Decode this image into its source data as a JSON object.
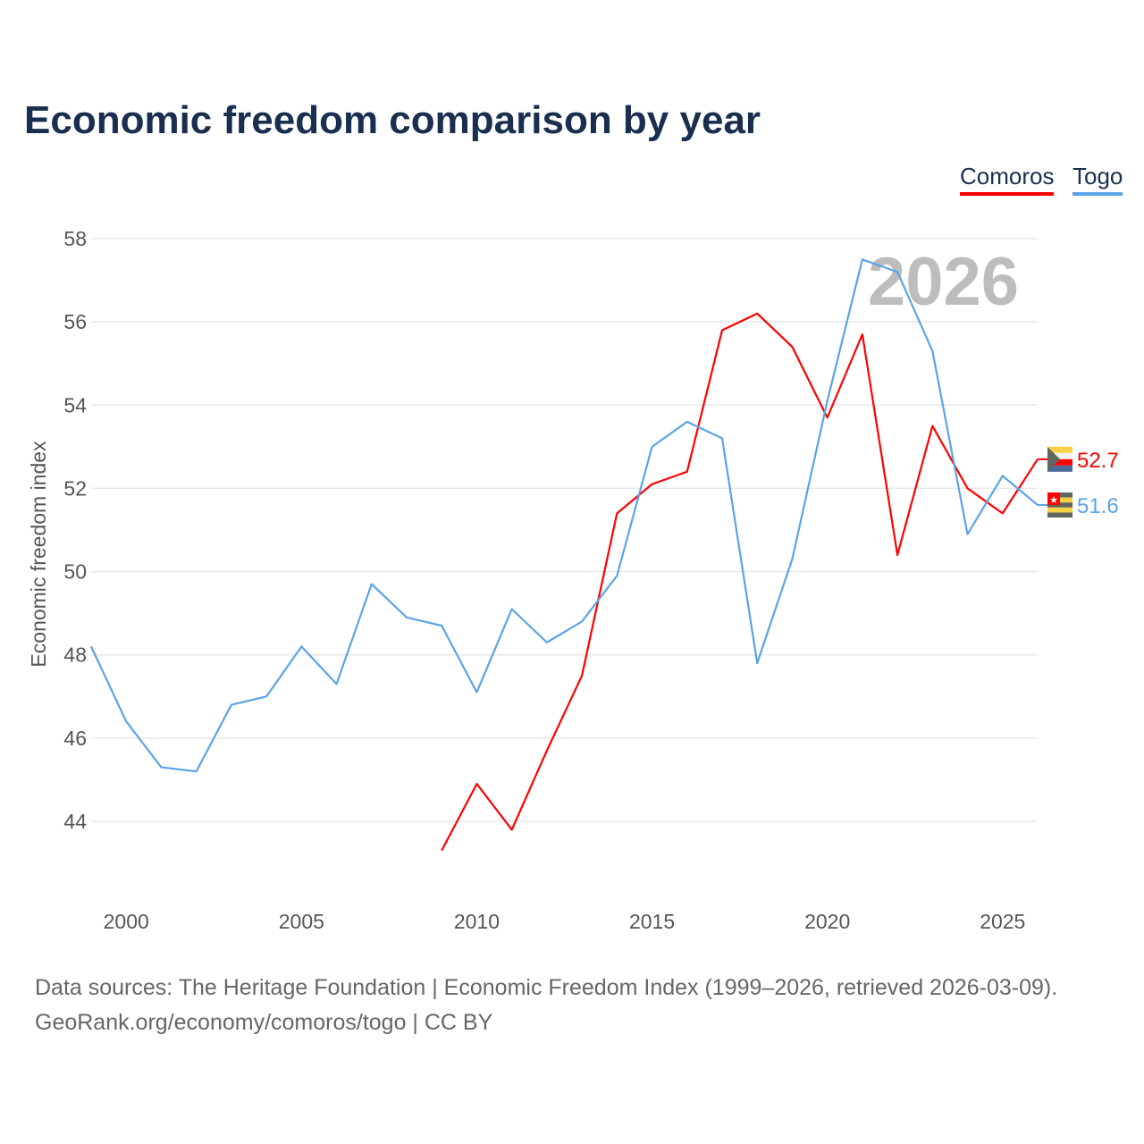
{
  "title": "Economic freedom comparison by year",
  "legend": [
    {
      "name": "Comoros",
      "color": "#ff0000"
    },
    {
      "name": "Togo",
      "color": "#5aa4e8"
    }
  ],
  "year_watermark": "2026",
  "footer": {
    "line1": "Data sources: The Heritage Foundation | Economic Freedom Index (1999–2026, retrieved 2026-03-09).",
    "line2": "GeoRank.org/economy/comoros/togo | CC BY"
  },
  "chart_data": {
    "type": "line",
    "title": "Economic freedom comparison by year",
    "xlabel": "",
    "ylabel": "Economic freedom index",
    "xlim": [
      1999,
      2026
    ],
    "ylim": [
      42.5,
      58.2
    ],
    "xticks": [
      2000,
      2005,
      2010,
      2015,
      2020,
      2025
    ],
    "yticks": [
      44,
      46,
      48,
      50,
      52,
      54,
      56,
      58
    ],
    "grid": true,
    "legend_position": "top-right",
    "series": [
      {
        "name": "Comoros",
        "color": "#ff0000",
        "end_label": "52.7",
        "x": [
          2009,
          2010,
          2011,
          2012,
          2013,
          2014,
          2015,
          2016,
          2017,
          2018,
          2019,
          2020,
          2021,
          2022,
          2023,
          2024,
          2025,
          2026
        ],
        "values": [
          43.3,
          44.9,
          43.8,
          45.7,
          47.5,
          51.4,
          52.1,
          52.4,
          55.8,
          56.2,
          55.4,
          53.7,
          55.7,
          50.4,
          53.5,
          52.0,
          51.4,
          52.7
        ]
      },
      {
        "name": "Togo",
        "color": "#5aa4e8",
        "end_label": "51.6",
        "x": [
          1999,
          2000,
          2001,
          2002,
          2003,
          2004,
          2005,
          2006,
          2007,
          2008,
          2009,
          2010,
          2011,
          2012,
          2013,
          2014,
          2015,
          2016,
          2017,
          2018,
          2019,
          2020,
          2021,
          2022,
          2023,
          2024,
          2025,
          2026
        ],
        "values": [
          48.2,
          46.4,
          45.3,
          45.2,
          46.8,
          47.0,
          48.2,
          47.3,
          49.7,
          48.9,
          48.7,
          47.1,
          49.1,
          48.3,
          48.8,
          49.9,
          53.0,
          53.6,
          53.2,
          47.8,
          50.3,
          54.1,
          57.5,
          57.2,
          55.3,
          50.9,
          52.3,
          51.6
        ]
      }
    ]
  }
}
